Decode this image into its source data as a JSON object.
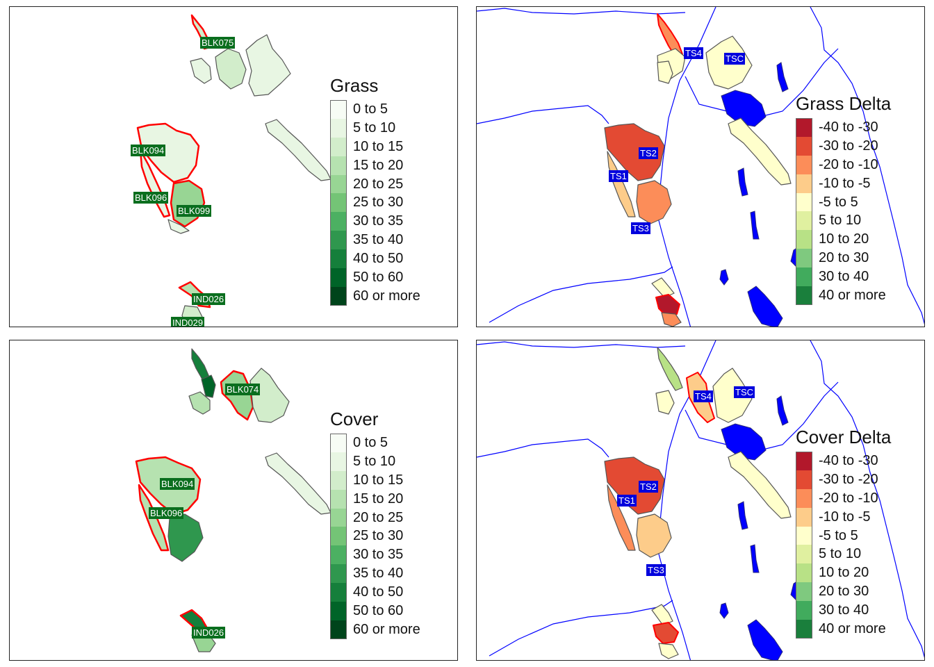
{
  "panels": {
    "grass": {
      "title": "Grass",
      "legend": [
        {
          "label": "0 to 5",
          "color": "#f7fcf5"
        },
        {
          "label": "5 to 10",
          "color": "#e8f6e3"
        },
        {
          "label": "10 to 15",
          "color": "#d2edcb"
        },
        {
          "label": "15 to 20",
          "color": "#b6e2b0"
        },
        {
          "label": "20 to 25",
          "color": "#98d594"
        },
        {
          "label": "25 to 30",
          "color": "#74c476"
        },
        {
          "label": "30 to 35",
          "color": "#4cb062"
        },
        {
          "label": "35 to 40",
          "color": "#2f974e"
        },
        {
          "label": "40 to 50",
          "color": "#157f3b"
        },
        {
          "label": "50 to 60",
          "color": "#006428"
        },
        {
          "label": "60 or more",
          "color": "#00441b"
        }
      ],
      "labels": [
        "BLK075",
        "BLK094",
        "BLK096",
        "BLK099",
        "IND026",
        "IND029"
      ]
    },
    "grass_delta": {
      "title": "Grass Delta",
      "legend": [
        {
          "label": "-40 to -30",
          "color": "#b2182b"
        },
        {
          "label": "-30 to -20",
          "color": "#e34a33"
        },
        {
          "label": "-20 to -10",
          "color": "#fc8d59"
        },
        {
          "label": "-10 to -5",
          "color": "#fdcc8a"
        },
        {
          "label": "-5 to 5",
          "color": "#ffffcc"
        },
        {
          "label": "5 to 10",
          "color": "#e0f0a0"
        },
        {
          "label": "10 to 20",
          "color": "#b8e186"
        },
        {
          "label": "20 to 30",
          "color": "#7fc97f"
        },
        {
          "label": "30 to 40",
          "color": "#41ab5d"
        },
        {
          "label": "40 or more",
          "color": "#1a7f3c"
        }
      ],
      "labels": [
        "TS4",
        "TSC",
        "TS2",
        "TS1",
        "TS3"
      ]
    },
    "cover": {
      "title": "Cover",
      "legend": [
        {
          "label": "0 to 5",
          "color": "#f7fcf5"
        },
        {
          "label": "5 to 10",
          "color": "#e8f6e3"
        },
        {
          "label": "10 to 15",
          "color": "#d2edcb"
        },
        {
          "label": "15 to 20",
          "color": "#b6e2b0"
        },
        {
          "label": "20 to 25",
          "color": "#98d594"
        },
        {
          "label": "25 to 30",
          "color": "#74c476"
        },
        {
          "label": "30 to 35",
          "color": "#4cb062"
        },
        {
          "label": "35 to 40",
          "color": "#2f974e"
        },
        {
          "label": "40 to 50",
          "color": "#157f3b"
        },
        {
          "label": "50 to 60",
          "color": "#006428"
        },
        {
          "label": "60 or more",
          "color": "#00441b"
        }
      ],
      "labels": [
        "BLK074",
        "BLK094",
        "BLK096",
        "IND026"
      ]
    },
    "cover_delta": {
      "title": "Cover Delta",
      "legend": [
        {
          "label": "-40 to -30",
          "color": "#b2182b"
        },
        {
          "label": "-30 to -20",
          "color": "#e34a33"
        },
        {
          "label": "-20 to -10",
          "color": "#fc8d59"
        },
        {
          "label": "-10 to -5",
          "color": "#fdcc8a"
        },
        {
          "label": "-5 to 5",
          "color": "#ffffcc"
        },
        {
          "label": "5 to 10",
          "color": "#e0f0a0"
        },
        {
          "label": "10 to 20",
          "color": "#b8e186"
        },
        {
          "label": "20 to 30",
          "color": "#7fc97f"
        },
        {
          "label": "30 to 40",
          "color": "#41ab5d"
        },
        {
          "label": "40 or more",
          "color": "#1a7f3c"
        }
      ],
      "labels": [
        "TS4",
        "TSC",
        "TS2",
        "TS1",
        "TS3"
      ]
    }
  },
  "colors": {
    "highlight_outline": "#ff0000",
    "water": "#0000ff",
    "label_green": "#0a6e1e",
    "label_blue": "#0000dd"
  }
}
